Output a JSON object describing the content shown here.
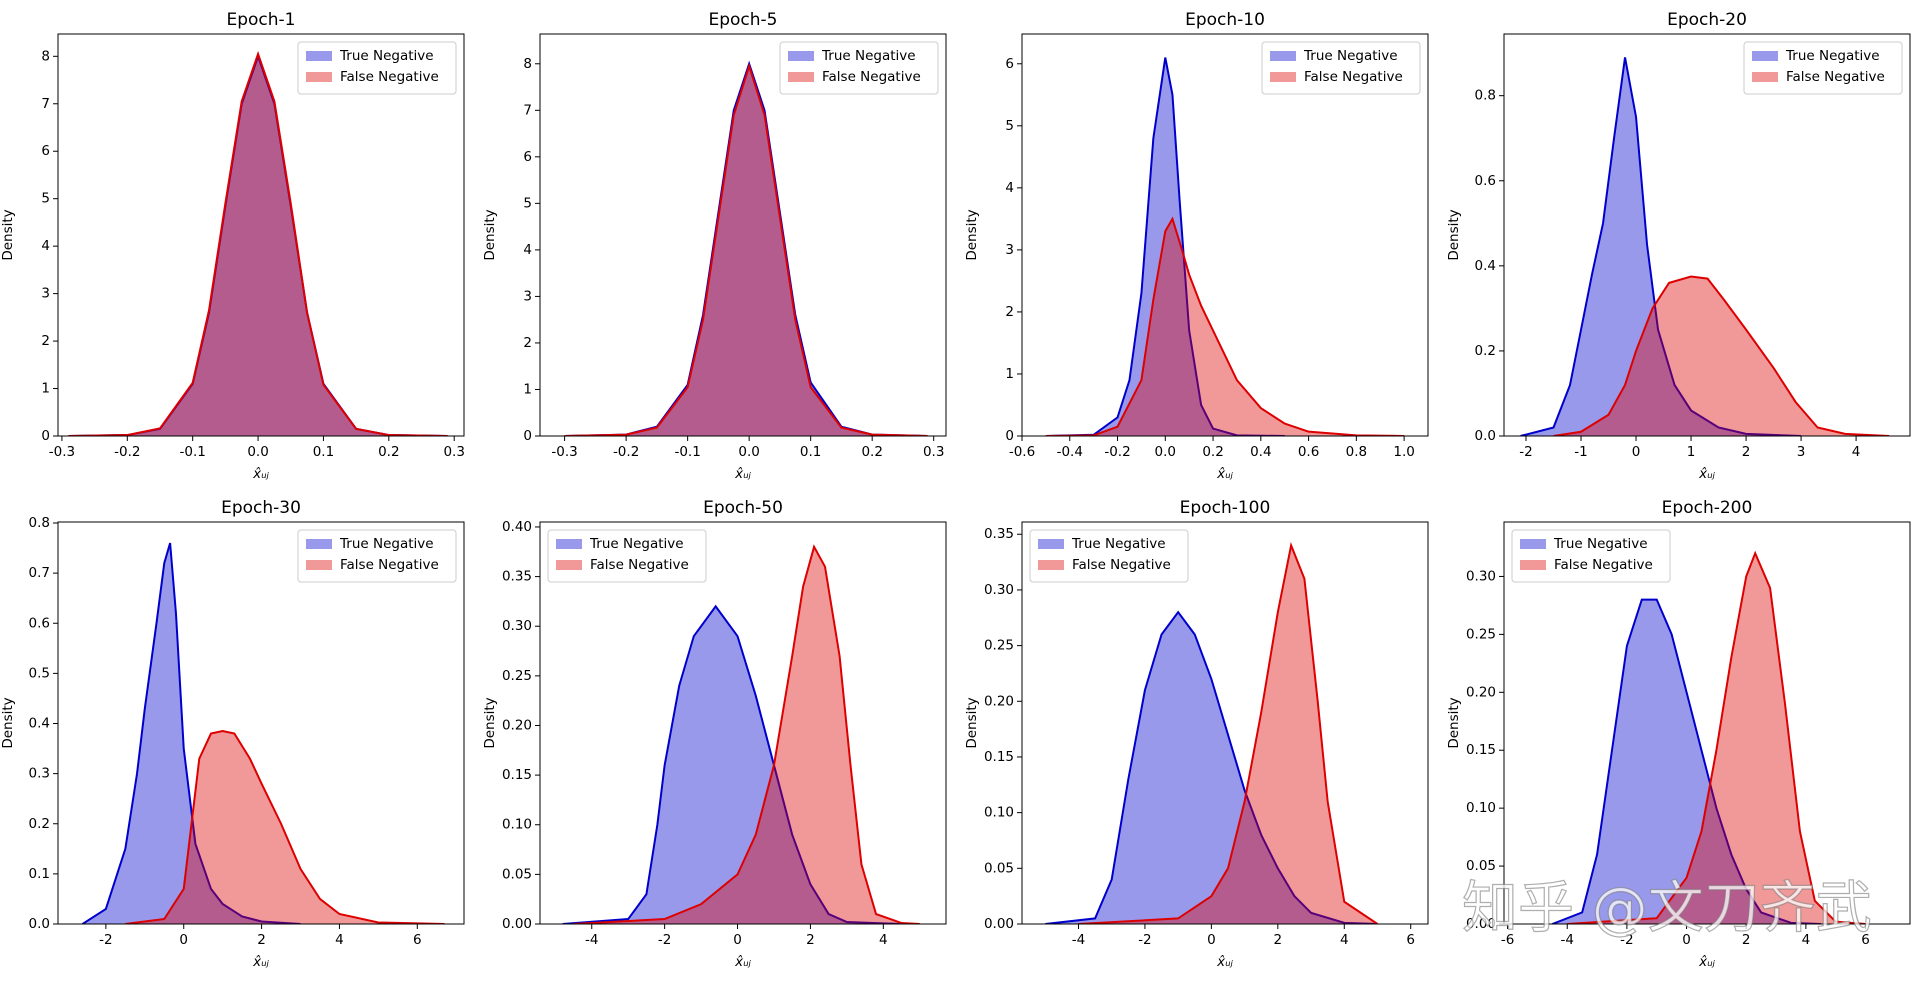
{
  "chart_data": [
    {
      "type": "kde",
      "title": "Epoch-1",
      "xlabel": "x̂ᵤⱼ",
      "ylabel": "Density",
      "legend": "upper right",
      "xlim": [
        -0.306,
        0.315
      ],
      "xticks": [
        -0.3,
        -0.2,
        -0.1,
        {
          "value": 0,
          "label": "0.0"
        },
        0.1,
        0.2,
        0.3
      ],
      "ylim": [
        0,
        8.47
      ],
      "yticks": [
        0,
        1,
        2,
        3,
        4,
        5,
        6,
        7,
        8
      ],
      "series": [
        {
          "name": "True Negative",
          "color": "#0000cc",
          "x": [
            -0.29,
            -0.2,
            -0.15,
            -0.1,
            -0.075,
            -0.05,
            -0.025,
            0,
            0.025,
            0.05,
            0.075,
            0.1,
            0.15,
            0.2,
            0.29
          ],
          "values": [
            0,
            0.02,
            0.15,
            1.1,
            2.6,
            4.85,
            7.0,
            8.0,
            7.0,
            4.85,
            2.6,
            1.1,
            0.15,
            0.02,
            0
          ]
        },
        {
          "name": "False Negative",
          "color": "#dd0000",
          "x": [
            -0.29,
            -0.2,
            -0.15,
            -0.1,
            -0.075,
            -0.05,
            -0.025,
            0,
            0.025,
            0.05,
            0.075,
            0.1,
            0.15,
            0.2,
            0.29
          ],
          "values": [
            0,
            0.02,
            0.16,
            1.12,
            2.65,
            4.9,
            7.05,
            8.05,
            7.05,
            4.9,
            2.6,
            1.08,
            0.15,
            0.02,
            0
          ]
        }
      ]
    },
    {
      "type": "kde",
      "title": "Epoch-5",
      "xlabel": "x̂ᵤⱼ",
      "ylabel": "Density",
      "legend": "upper right",
      "xlim": [
        -0.34,
        0.32
      ],
      "xticks": [
        -0.3,
        -0.2,
        -0.1,
        {
          "value": 0,
          "label": "0.0"
        },
        0.1,
        0.2,
        0.3
      ],
      "ylim": [
        0,
        8.64
      ],
      "yticks": [
        0,
        1,
        2,
        3,
        4,
        5,
        6,
        7,
        8
      ],
      "series": [
        {
          "name": "True Negative",
          "color": "#0000cc",
          "x": [
            -0.3,
            -0.2,
            -0.15,
            -0.1,
            -0.075,
            -0.05,
            -0.025,
            0,
            0.025,
            0.05,
            0.075,
            0.1,
            0.15,
            0.2,
            0.29
          ],
          "values": [
            0,
            0.03,
            0.2,
            1.1,
            2.6,
            4.8,
            7.0,
            8.0,
            7.0,
            4.8,
            2.6,
            1.15,
            0.2,
            0.03,
            0
          ]
        },
        {
          "name": "False Negative",
          "color": "#dd0000",
          "x": [
            -0.3,
            -0.2,
            -0.15,
            -0.1,
            -0.075,
            -0.05,
            -0.025,
            0,
            0.025,
            0.05,
            0.075,
            0.1,
            0.15,
            0.2,
            0.29
          ],
          "values": [
            0,
            0.03,
            0.18,
            1.05,
            2.5,
            4.7,
            6.9,
            7.95,
            6.9,
            4.7,
            2.5,
            1.05,
            0.18,
            0.03,
            0
          ]
        }
      ]
    },
    {
      "type": "kde",
      "title": "Epoch-10",
      "xlabel": "x̂ᵤⱼ",
      "ylabel": "Density",
      "legend": "upper right",
      "xlim": [
        -0.6,
        1.1
      ],
      "xticks": [
        -0.6,
        -0.4,
        -0.2,
        {
          "value": 0,
          "label": "0.0"
        },
        0.2,
        0.4,
        0.6,
        0.8,
        {
          "value": 1,
          "label": "1.0"
        }
      ],
      "ylim": [
        0,
        6.48
      ],
      "yticks": [
        0,
        1,
        2,
        3,
        4,
        5,
        6
      ],
      "series": [
        {
          "name": "True Negative",
          "color": "#0000cc",
          "x": [
            -0.5,
            -0.3,
            -0.2,
            -0.15,
            -0.1,
            -0.05,
            0,
            0.03,
            0.06,
            0.1,
            0.15,
            0.2,
            0.3,
            0.5
          ],
          "values": [
            0,
            0.02,
            0.3,
            0.9,
            2.3,
            4.8,
            6.1,
            5.5,
            3.8,
            1.7,
            0.5,
            0.12,
            0.01,
            0
          ]
        },
        {
          "name": "False Negative",
          "color": "#dd0000",
          "x": [
            -0.5,
            -0.3,
            -0.2,
            -0.1,
            -0.05,
            0,
            0.03,
            0.07,
            0.1,
            0.15,
            0.2,
            0.3,
            0.4,
            0.5,
            0.6,
            0.8,
            1.0
          ],
          "values": [
            0,
            0.01,
            0.15,
            0.9,
            2.2,
            3.3,
            3.5,
            3.0,
            2.6,
            2.1,
            1.7,
            0.9,
            0.45,
            0.2,
            0.07,
            0.01,
            0
          ]
        }
      ]
    },
    {
      "type": "kde",
      "title": "Epoch-20",
      "xlabel": "x̂ᵤⱼ",
      "ylabel": "Density",
      "legend": "upper right",
      "xlim": [
        -2.4,
        4.98
      ],
      "xticks": [
        -2,
        -1,
        0,
        1,
        2,
        3,
        4
      ],
      "ylim": [
        0,
        0.945
      ],
      "yticks": [
        {
          "value": 0,
          "label": "0.0"
        },
        0.2,
        0.4,
        0.6,
        0.8
      ],
      "series": [
        {
          "name": "True Negative",
          "color": "#0000cc",
          "x": [
            -2.1,
            -1.5,
            -1.2,
            -1,
            -0.8,
            -0.6,
            -0.4,
            -0.2,
            0,
            0.2,
            0.4,
            0.7,
            1,
            1.5,
            2,
            3
          ],
          "values": [
            0,
            0.02,
            0.12,
            0.25,
            0.38,
            0.5,
            0.7,
            0.89,
            0.75,
            0.45,
            0.25,
            0.12,
            0.06,
            0.02,
            0.005,
            0
          ]
        },
        {
          "name": "False Negative",
          "color": "#dd0000",
          "x": [
            -1.5,
            -1,
            -0.5,
            -0.2,
            0,
            0.3,
            0.6,
            1,
            1.3,
            1.6,
            2,
            2.5,
            2.9,
            3.3,
            3.8,
            4.6
          ],
          "values": [
            0,
            0.01,
            0.05,
            0.12,
            0.2,
            0.3,
            0.36,
            0.375,
            0.37,
            0.32,
            0.25,
            0.16,
            0.08,
            0.02,
            0.005,
            0
          ]
        }
      ]
    },
    {
      "type": "kde",
      "title": "Epoch-30",
      "xlabel": "x̂ᵤⱼ",
      "ylabel": "Density",
      "legend": "upper right",
      "xlim": [
        -3.23,
        7.2
      ],
      "xticks": [
        -2,
        0,
        2,
        4,
        6
      ],
      "ylim": [
        0,
        0.802
      ],
      "yticks": [
        {
          "value": 0,
          "label": "0.0"
        },
        0.1,
        0.2,
        0.3,
        0.4,
        0.5,
        0.6,
        0.7,
        0.8
      ],
      "series": [
        {
          "name": "True Negative",
          "color": "#0000cc",
          "x": [
            -2.6,
            -2,
            -1.5,
            -1.2,
            -1,
            -0.7,
            -0.5,
            -0.35,
            -0.2,
            0,
            0.3,
            0.7,
            1,
            1.5,
            2,
            3
          ],
          "values": [
            0,
            0.03,
            0.15,
            0.3,
            0.43,
            0.6,
            0.72,
            0.76,
            0.62,
            0.35,
            0.16,
            0.07,
            0.04,
            0.015,
            0.005,
            0
          ]
        },
        {
          "name": "False Negative",
          "color": "#dd0000",
          "x": [
            -1.5,
            -0.5,
            0,
            0.2,
            0.4,
            0.7,
            1,
            1.3,
            1.7,
            2,
            2.5,
            3,
            3.5,
            4,
            5,
            6.7
          ],
          "values": [
            0,
            0.01,
            0.07,
            0.2,
            0.33,
            0.38,
            0.385,
            0.38,
            0.33,
            0.28,
            0.2,
            0.11,
            0.05,
            0.02,
            0.003,
            0
          ]
        }
      ]
    },
    {
      "type": "kde",
      "title": "Epoch-50",
      "xlabel": "x̂ᵤⱼ",
      "ylabel": "Density",
      "legend": "upper left",
      "xlim": [
        -5.42,
        5.72
      ],
      "xticks": [
        -4,
        -2,
        0,
        2,
        4
      ],
      "ylim": [
        0,
        0.405
      ],
      "yticks": [
        {
          "value": 0,
          "label": "0.00"
        },
        0.05,
        {
          "value": 0.1,
          "label": "0.10"
        },
        0.15,
        {
          "value": 0.2,
          "label": "0.20"
        },
        0.25,
        {
          "value": 0.3,
          "label": "0.30"
        },
        0.35,
        {
          "value": 0.4,
          "label": "0.40"
        }
      ],
      "series": [
        {
          "name": "True Negative",
          "color": "#0000cc",
          "x": [
            -4.8,
            -3,
            -2.5,
            -2.2,
            -2,
            -1.6,
            -1.2,
            -0.6,
            0,
            0.5,
            1,
            1.5,
            2,
            2.5,
            3,
            4.5
          ],
          "values": [
            0,
            0.005,
            0.03,
            0.1,
            0.16,
            0.24,
            0.29,
            0.32,
            0.29,
            0.23,
            0.16,
            0.09,
            0.04,
            0.01,
            0.002,
            0
          ]
        },
        {
          "name": "False Negative",
          "color": "#dd0000",
          "x": [
            -4.5,
            -2,
            -1,
            0,
            0.5,
            1,
            1.5,
            1.8,
            2.1,
            2.4,
            2.8,
            3.1,
            3.4,
            3.8,
            4.5,
            5
          ],
          "values": [
            0,
            0.005,
            0.02,
            0.05,
            0.09,
            0.16,
            0.27,
            0.34,
            0.38,
            0.36,
            0.27,
            0.16,
            0.06,
            0.01,
            0.001,
            0
          ]
        }
      ]
    },
    {
      "type": "kde",
      "title": "Epoch-100",
      "xlabel": "x̂ᵤⱼ",
      "ylabel": "Density",
      "legend": "upper left",
      "xlim": [
        -5.7,
        6.52
      ],
      "xticks": [
        -4,
        -2,
        0,
        2,
        4,
        6
      ],
      "ylim": [
        0,
        0.361
      ],
      "yticks": [
        {
          "value": 0,
          "label": "0.00"
        },
        0.05,
        {
          "value": 0.1,
          "label": "0.10"
        },
        0.15,
        {
          "value": 0.2,
          "label": "0.20"
        },
        0.25,
        {
          "value": 0.3,
          "label": "0.30"
        },
        0.35
      ],
      "series": [
        {
          "name": "True Negative",
          "color": "#0000cc",
          "x": [
            -5,
            -3.5,
            -3,
            -2.5,
            -2,
            -1.5,
            -1,
            -0.5,
            0,
            0.5,
            1,
            1.5,
            2,
            2.5,
            3,
            4,
            5
          ],
          "values": [
            0,
            0.005,
            0.04,
            0.13,
            0.21,
            0.26,
            0.28,
            0.26,
            0.22,
            0.17,
            0.12,
            0.08,
            0.05,
            0.025,
            0.01,
            0.001,
            0
          ]
        },
        {
          "name": "False Negative",
          "color": "#dd0000",
          "x": [
            -4,
            -1,
            0,
            0.5,
            1,
            1.5,
            2,
            2.4,
            2.8,
            3.2,
            3.5,
            4,
            5
          ],
          "values": [
            0,
            0.005,
            0.025,
            0.05,
            0.11,
            0.19,
            0.28,
            0.34,
            0.31,
            0.2,
            0.11,
            0.02,
            0
          ]
        }
      ]
    },
    {
      "type": "kde",
      "title": "Epoch-200",
      "xlabel": "x̂ᵤⱼ",
      "ylabel": "Density",
      "legend": "upper left",
      "xlim": [
        -6.12,
        7.49
      ],
      "xticks": [
        -6,
        -4,
        -2,
        0,
        2,
        4,
        6
      ],
      "ylim": [
        0,
        0.347
      ],
      "yticks": [
        {
          "value": 0,
          "label": "0.00"
        },
        0.05,
        {
          "value": 0.1,
          "label": "0.10"
        },
        0.15,
        {
          "value": 0.2,
          "label": "0.20"
        },
        0.25,
        {
          "value": 0.3,
          "label": "0.30"
        }
      ],
      "series": [
        {
          "name": "True Negative",
          "color": "#0000cc",
          "x": [
            -4.5,
            -3.5,
            -3,
            -2.5,
            -2,
            -1.5,
            -1,
            -0.5,
            0,
            0.5,
            1,
            1.5,
            2,
            2.5,
            3.5,
            4.5
          ],
          "values": [
            0,
            0.01,
            0.06,
            0.15,
            0.24,
            0.28,
            0.28,
            0.25,
            0.2,
            0.15,
            0.1,
            0.06,
            0.03,
            0.01,
            0.001,
            0
          ]
        },
        {
          "name": "False Negative",
          "color": "#dd0000",
          "x": [
            -4,
            -1,
            0,
            0.5,
            1,
            1.5,
            2,
            2.3,
            2.8,
            3.3,
            3.8,
            4.3,
            5,
            6
          ],
          "values": [
            0,
            0.005,
            0.04,
            0.08,
            0.15,
            0.23,
            0.3,
            0.32,
            0.29,
            0.19,
            0.08,
            0.02,
            0.002,
            0
          ]
        }
      ]
    }
  ],
  "watermark": "知乎 @文刀齐武"
}
